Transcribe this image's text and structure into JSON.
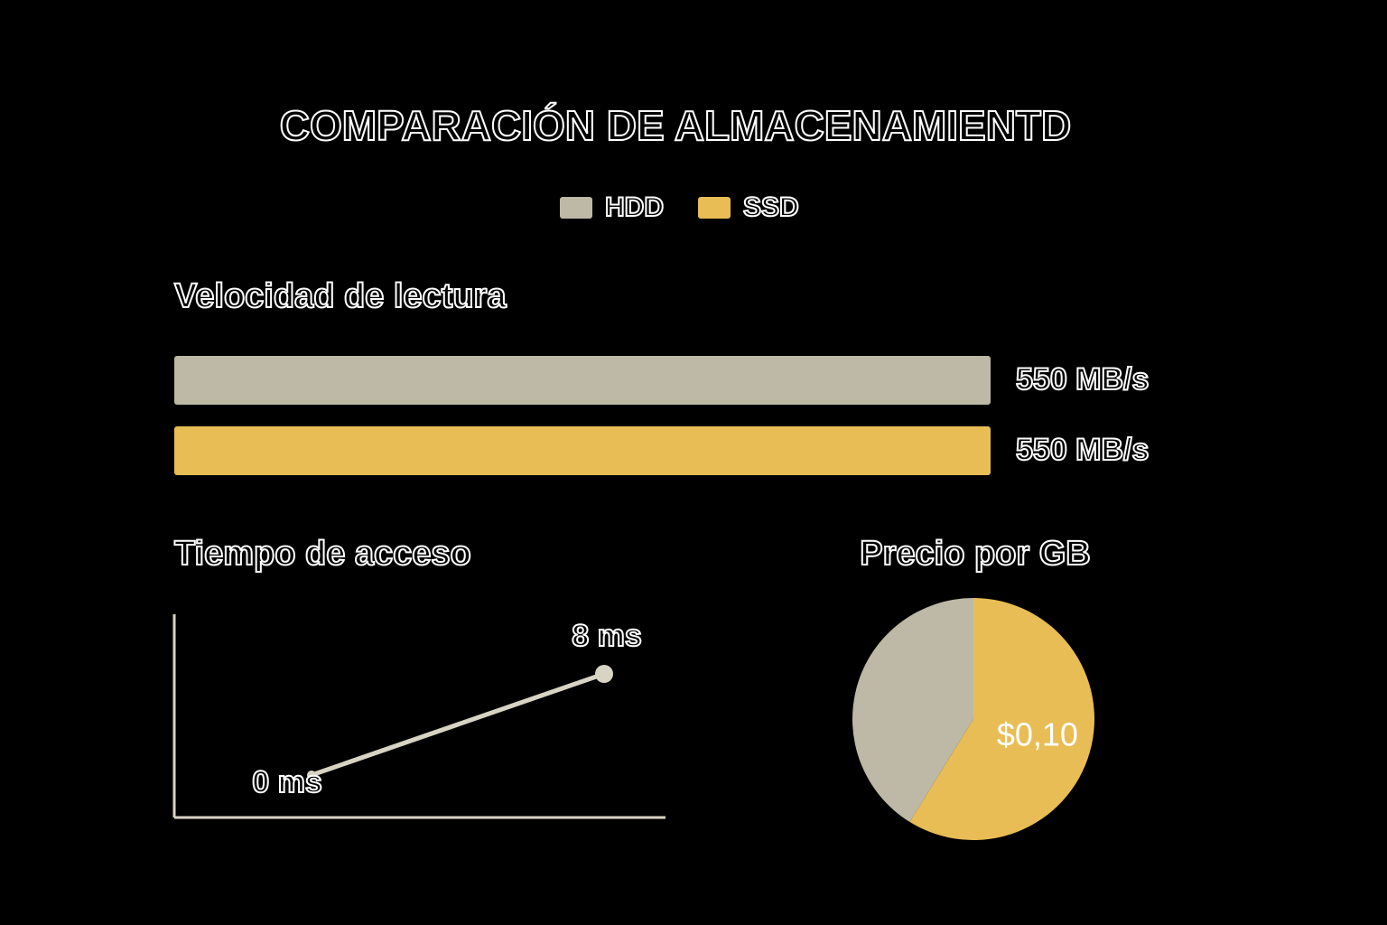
{
  "title": "COMPARACIÓN DE ALMACENAMIENTD",
  "chart_data": [
    {
      "type": "bar",
      "title": "Velocidad de lectura",
      "series": [
        {
          "name": "HDD",
          "color": "#bdb9a6",
          "values": [
            550
          ],
          "value_labels": [
            "550 MB/s"
          ]
        },
        {
          "name": "SSD",
          "color": "#e8bd55",
          "values": [
            550
          ],
          "value_labels": [
            "550 MB/s"
          ]
        }
      ]
    },
    {
      "type": "line",
      "title": "Tiempo de acceso",
      "color": "#d8d4c4",
      "values": [
        0,
        8
      ],
      "value_labels": [
        "0 ms",
        "8 ms"
      ]
    },
    {
      "type": "pie",
      "title": "Precio por GB",
      "values": [
        0.07,
        0.1
      ],
      "value_labels": [
        null,
        "$0,10"
      ],
      "colors": [
        "#bdb9a6",
        "#e8bd55"
      ]
    }
  ]
}
